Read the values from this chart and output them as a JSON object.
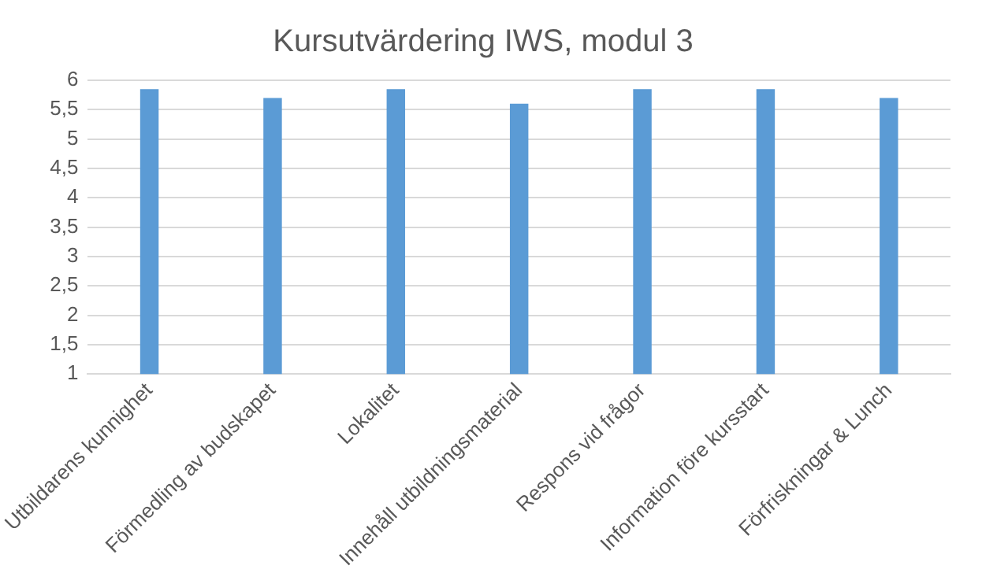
{
  "chart_data": {
    "type": "bar",
    "title": "Kursutvärdering IWS, modul 3",
    "categories": [
      "Utbildarens kunnighet",
      "Förmedling av budskapet",
      "Lokalitet",
      "Innehåll utbildningsmaterial",
      "Respons vid frågor",
      "Information före kursstart",
      "Förfriskningar & Lunch"
    ],
    "values": [
      5.85,
      5.7,
      5.85,
      5.6,
      5.85,
      5.85,
      5.7
    ],
    "color": "#5b9bd5",
    "ylim": [
      1,
      6
    ],
    "yticks": [
      1,
      {
        "value": 1.5,
        "label": "1,5"
      },
      2,
      {
        "value": 2.5,
        "label": "2,5"
      },
      3,
      {
        "value": 3.5,
        "label": "3,5"
      },
      4,
      {
        "value": 4.5,
        "label": "4,5"
      },
      5,
      {
        "value": 5.5,
        "label": "5,5"
      },
      6
    ],
    "grid": "y"
  }
}
